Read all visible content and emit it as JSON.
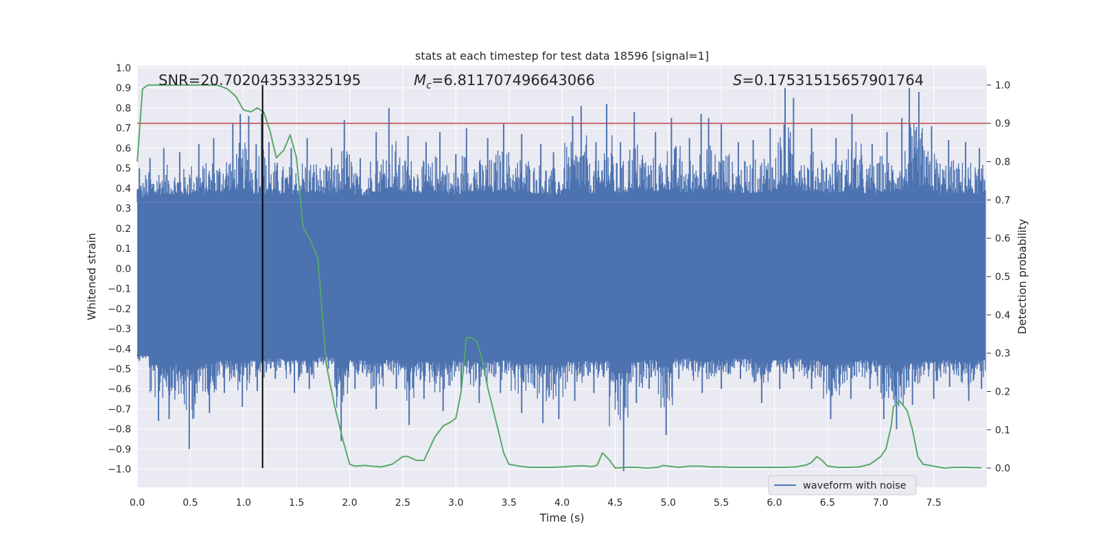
{
  "chart_data": {
    "type": "line",
    "title": "stats at each timestep for test data 18596 [signal=1]",
    "xlabel": "Time (s)",
    "ylabel": "Whitened strain",
    "y2label": "Detection probability",
    "xlim": [
      0,
      8
    ],
    "ylim": [
      -1.09,
      1.01
    ],
    "y2lim": [
      -0.05,
      1.05
    ],
    "xticks": [
      "0.0",
      "0.5",
      "1.0",
      "1.5",
      "2.0",
      "2.5",
      "3.0",
      "3.5",
      "4.0",
      "4.5",
      "5.0",
      "5.5",
      "6.0",
      "6.5",
      "7.0",
      "7.5"
    ],
    "yticks": [
      "1.0",
      "0.9",
      "0.8",
      "0.7",
      "0.6",
      "0.5",
      "0.4",
      "0.3",
      "0.2",
      "0.1",
      "0.0",
      "−0.1",
      "−0.2",
      "−0.3",
      "−0.4",
      "−0.5",
      "−0.6",
      "−0.7",
      "−0.8",
      "−0.9",
      "−1.0"
    ],
    "y2ticks": [
      "0.0",
      "0.1",
      "0.2",
      "0.3",
      "0.4",
      "0.5",
      "0.6",
      "0.7",
      "0.8",
      "0.9",
      "1.0"
    ],
    "grid": true,
    "legend": {
      "position": "lower-right",
      "entries": [
        "waveform with noise"
      ]
    },
    "annotations": {
      "snr": "SNR=20.702043533325195",
      "mc_symbol": "M",
      "mc_sub": "c",
      "mc_value": "=6.811707496643066",
      "s_symbol": "S",
      "s_value": "=0.17531515657901764"
    },
    "threshold": {
      "value": 0.9,
      "axis": "right",
      "color": "#c44e52"
    },
    "marker_time": 1.18,
    "waveform": {
      "name": "waveform with noise",
      "color": "#4c72b0",
      "t_start": 0.0,
      "t_end": 7.99,
      "core_band": [
        -0.43,
        0.33
      ],
      "peaks_up": [
        [
          0.02,
          0.5
        ],
        [
          0.12,
          0.55
        ],
        [
          0.25,
          0.6
        ],
        [
          0.4,
          0.58
        ],
        [
          0.58,
          0.62
        ],
        [
          0.72,
          0.65
        ],
        [
          0.9,
          0.72
        ],
        [
          0.97,
          0.77
        ],
        [
          1.05,
          0.76
        ],
        [
          1.12,
          0.62
        ],
        [
          1.17,
          0.77
        ],
        [
          1.24,
          0.63
        ],
        [
          1.45,
          0.6
        ],
        [
          1.6,
          0.65
        ],
        [
          1.83,
          0.6
        ],
        [
          1.95,
          0.74
        ],
        [
          2.1,
          0.55
        ],
        [
          2.25,
          0.68
        ],
        [
          2.37,
          0.8
        ],
        [
          2.55,
          0.66
        ],
        [
          2.72,
          0.63
        ],
        [
          2.85,
          0.68
        ],
        [
          3.0,
          0.57
        ],
        [
          3.1,
          0.7
        ],
        [
          3.3,
          0.65
        ],
        [
          3.45,
          0.72
        ],
        [
          3.62,
          0.67
        ],
        [
          3.8,
          0.62
        ],
        [
          3.92,
          0.58
        ],
        [
          4.1,
          0.76
        ],
        [
          4.18,
          0.81
        ],
        [
          4.32,
          0.63
        ],
        [
          4.42,
          0.82
        ],
        [
          4.55,
          0.63
        ],
        [
          4.68,
          0.78
        ],
        [
          4.88,
          0.68
        ],
        [
          5.03,
          0.75
        ],
        [
          5.2,
          0.65
        ],
        [
          5.31,
          0.77
        ],
        [
          5.38,
          0.75
        ],
        [
          5.5,
          0.72
        ],
        [
          5.66,
          0.63
        ],
        [
          5.8,
          0.64
        ],
        [
          5.96,
          0.7
        ],
        [
          6.1,
          0.9
        ],
        [
          6.18,
          0.85
        ],
        [
          6.35,
          0.7
        ],
        [
          6.58,
          0.65
        ],
        [
          6.73,
          0.77
        ],
        [
          6.92,
          0.62
        ],
        [
          7.06,
          0.68
        ],
        [
          7.2,
          0.75
        ],
        [
          7.27,
          0.9
        ],
        [
          7.36,
          0.88
        ],
        [
          7.48,
          0.71
        ],
        [
          7.64,
          0.64
        ],
        [
          7.8,
          0.63
        ],
        [
          7.93,
          0.6
        ]
      ],
      "peaks_down": [
        [
          0.02,
          -0.46
        ],
        [
          0.2,
          -0.76
        ],
        [
          0.3,
          -0.75
        ],
        [
          0.49,
          -0.9
        ],
        [
          0.68,
          -0.72
        ],
        [
          0.82,
          -0.62
        ],
        [
          0.99,
          -0.69
        ],
        [
          1.13,
          -0.61
        ],
        [
          1.3,
          -0.55
        ],
        [
          1.48,
          -0.62
        ],
        [
          1.62,
          -0.6
        ],
        [
          1.8,
          -0.5
        ],
        [
          1.92,
          -0.86
        ],
        [
          2.05,
          -0.6
        ],
        [
          2.25,
          -0.7
        ],
        [
          2.44,
          -0.6
        ],
        [
          2.56,
          -0.78
        ],
        [
          2.7,
          -0.65
        ],
        [
          2.88,
          -0.71
        ],
        [
          3.05,
          -0.6
        ],
        [
          3.22,
          -0.67
        ],
        [
          3.42,
          -0.62
        ],
        [
          3.62,
          -0.72
        ],
        [
          3.82,
          -0.77
        ],
        [
          3.97,
          -0.75
        ],
        [
          4.12,
          -0.66
        ],
        [
          4.3,
          -0.62
        ],
        [
          4.58,
          -1.01
        ],
        [
          4.7,
          -0.67
        ],
        [
          4.82,
          -0.6
        ],
        [
          4.98,
          -0.83
        ],
        [
          5.1,
          -0.55
        ],
        [
          5.32,
          -0.62
        ],
        [
          5.5,
          -0.6
        ],
        [
          5.68,
          -0.55
        ],
        [
          5.88,
          -0.67
        ],
        [
          6.05,
          -0.6
        ],
        [
          6.18,
          -0.55
        ],
        [
          6.35,
          -0.6
        ],
        [
          6.53,
          -0.75
        ],
        [
          6.72,
          -0.65
        ],
        [
          6.9,
          -0.6
        ],
        [
          7.03,
          -0.75
        ],
        [
          7.15,
          -0.8
        ],
        [
          7.3,
          -0.68
        ],
        [
          7.5,
          -0.65
        ],
        [
          7.65,
          -0.59
        ],
        [
          7.83,
          -0.66
        ],
        [
          7.95,
          -0.6
        ]
      ]
    },
    "probability": {
      "name": "detection probability",
      "color": "#55a868",
      "x": [
        0.0,
        0.05,
        0.1,
        0.2,
        0.4,
        0.6,
        0.75,
        0.85,
        0.93,
        1.0,
        1.07,
        1.13,
        1.19,
        1.25,
        1.31,
        1.38,
        1.44,
        1.5,
        1.56,
        1.62,
        1.7,
        1.78,
        1.86,
        1.94,
        2.0,
        2.05,
        2.15,
        2.2,
        2.3,
        2.4,
        2.5,
        2.55,
        2.63,
        2.7,
        2.75,
        2.8,
        2.88,
        2.95,
        3.0,
        3.05,
        3.1,
        3.15,
        3.2,
        3.25,
        3.3,
        3.38,
        3.45,
        3.5,
        3.6,
        3.7,
        3.8,
        3.9,
        4.0,
        4.1,
        4.2,
        4.28,
        4.33,
        4.38,
        4.45,
        4.5,
        4.6,
        4.7,
        4.8,
        4.9,
        4.95,
        5.0,
        5.1,
        5.2,
        5.3,
        5.4,
        5.5,
        5.6,
        5.7,
        5.8,
        5.9,
        6.0,
        6.1,
        6.2,
        6.3,
        6.35,
        6.4,
        6.45,
        6.5,
        6.6,
        6.7,
        6.8,
        6.9,
        6.95,
        7.0,
        7.05,
        7.1,
        7.12,
        7.18,
        7.25,
        7.3,
        7.35,
        7.4,
        7.5,
        7.6,
        7.7,
        7.8,
        7.9,
        7.95
      ],
      "y": [
        0.8,
        0.99,
        1.0,
        1.0,
        1.0,
        1.0,
        1.0,
        0.99,
        0.97,
        0.935,
        0.93,
        0.94,
        0.93,
        0.88,
        0.81,
        0.83,
        0.87,
        0.81,
        0.63,
        0.6,
        0.55,
        0.27,
        0.16,
        0.07,
        0.01,
        0.005,
        0.007,
        0.005,
        0.003,
        0.01,
        0.03,
        0.03,
        0.02,
        0.02,
        0.05,
        0.08,
        0.11,
        0.12,
        0.13,
        0.2,
        0.34,
        0.34,
        0.33,
        0.28,
        0.21,
        0.12,
        0.04,
        0.01,
        0.005,
        0.002,
        0.002,
        0.002,
        0.003,
        0.005,
        0.006,
        0.004,
        0.007,
        0.04,
        0.02,
        0.0,
        0.002,
        0.002,
        0.0,
        0.002,
        0.007,
        0.005,
        0.002,
        0.005,
        0.005,
        0.003,
        0.003,
        0.002,
        0.002,
        0.002,
        0.002,
        0.002,
        0.002,
        0.003,
        0.008,
        0.015,
        0.03,
        0.02,
        0.005,
        0.002,
        0.002,
        0.003,
        0.01,
        0.02,
        0.03,
        0.05,
        0.11,
        0.16,
        0.175,
        0.15,
        0.1,
        0.03,
        0.01,
        0.005,
        0.0,
        0.002,
        0.002,
        0.001,
        0.001
      ]
    }
  }
}
